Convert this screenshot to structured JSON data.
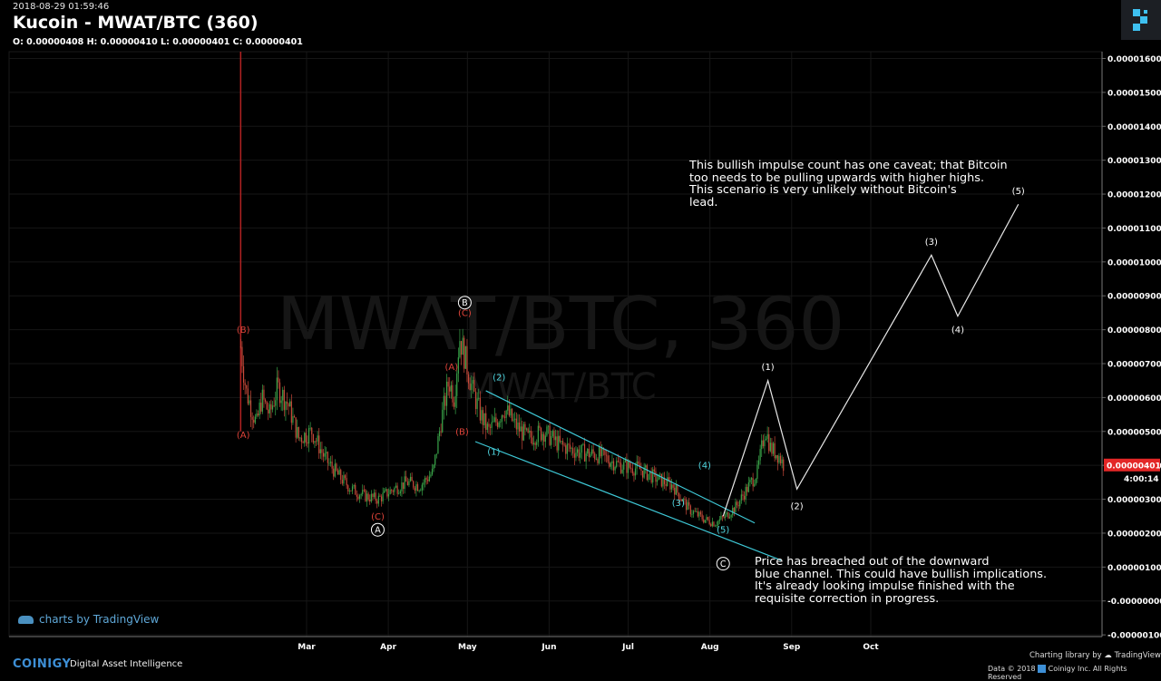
{
  "header": {
    "timestamp": "2018-08-29 01:59:46",
    "title": "Kucoin - MWAT/BTC (360)",
    "ohlc": "O: 0.00000408 H: 0.00000410 L: 0.00000401 C: 0.00000401"
  },
  "watermark": {
    "main": "MWAT/BTC, 360",
    "sub": "MWAT/BTC"
  },
  "chart_data": {
    "type": "candlestick",
    "symbol": "MWAT/BTC",
    "exchange": "Kucoin",
    "interval": "360",
    "x_tick_labels": [
      "Mar",
      "Apr",
      "May",
      "Jun",
      "Jul",
      "Aug",
      "Sep",
      "Oct"
    ],
    "y_tick_labels": [
      "0.00001600",
      "0.00001500",
      "0.00001400",
      "0.00001300",
      "0.00001200",
      "0.00001100",
      "0.00001000",
      "0.00000900",
      "0.00000800",
      "0.00000700",
      "0.00000600",
      "0.00000500",
      "0.00000400",
      "0.00000300",
      "0.00000200",
      "0.00000100",
      "-0.00000000",
      "-0.00000100"
    ],
    "ylim": [
      -1.05e-06,
      1.62e-05
    ],
    "grid": true,
    "last_price": "0.00000401",
    "countdown": "4:00:14",
    "price_path": [
      [
        "2018-02-04",
        7.5e-06
      ],
      [
        "2018-02-06",
        6.2e-06
      ],
      [
        "2018-02-08",
        5.7e-06
      ],
      [
        "2018-02-10",
        5.2e-06
      ],
      [
        "2018-02-12",
        6e-06
      ],
      [
        "2018-02-15",
        5.5e-06
      ],
      [
        "2018-02-18",
        6.3e-06
      ],
      [
        "2018-02-22",
        5.8e-06
      ],
      [
        "2018-02-26",
        4.8e-06
      ],
      [
        "2018-03-03",
        5e-06
      ],
      [
        "2018-03-08",
        4.2e-06
      ],
      [
        "2018-03-13",
        3.7e-06
      ],
      [
        "2018-03-18",
        3.3e-06
      ],
      [
        "2018-03-23",
        3.1e-06
      ],
      [
        "2018-03-28",
        3e-06
      ],
      [
        "2018-04-03",
        3.3e-06
      ],
      [
        "2018-04-08",
        3.5e-06
      ],
      [
        "2018-04-13",
        3.4e-06
      ],
      [
        "2018-04-18",
        3.8e-06
      ],
      [
        "2018-04-21",
        5.3e-06
      ],
      [
        "2018-04-24",
        6.5e-06
      ],
      [
        "2018-04-26",
        6e-06
      ],
      [
        "2018-04-28",
        7.8e-06
      ],
      [
        "2018-04-30",
        7.2e-06
      ],
      [
        "2018-05-03",
        6.2e-06
      ],
      [
        "2018-05-06",
        5.5e-06
      ],
      [
        "2018-05-09",
        5e-06
      ],
      [
        "2018-05-12",
        5.3e-06
      ],
      [
        "2018-05-15",
        5.7e-06
      ],
      [
        "2018-05-19",
        5.2e-06
      ],
      [
        "2018-05-24",
        4.8e-06
      ],
      [
        "2018-05-30",
        5e-06
      ],
      [
        "2018-06-05",
        4.6e-06
      ],
      [
        "2018-06-12",
        4.4e-06
      ],
      [
        "2018-06-20",
        4.3e-06
      ],
      [
        "2018-06-28",
        4e-06
      ],
      [
        "2018-07-05",
        3.9e-06
      ],
      [
        "2018-07-12",
        3.6e-06
      ],
      [
        "2018-07-18",
        3.4e-06
      ],
      [
        "2018-07-24",
        2.7e-06
      ],
      [
        "2018-07-30",
        2.4e-06
      ],
      [
        "2018-08-03",
        2.3e-06
      ],
      [
        "2018-08-07",
        2.5e-06
      ],
      [
        "2018-08-11",
        2.8e-06
      ],
      [
        "2018-08-15",
        3.3e-06
      ],
      [
        "2018-08-19",
        3.8e-06
      ],
      [
        "2018-08-22",
        5.1e-06
      ],
      [
        "2018-08-24",
        4.5e-06
      ],
      [
        "2018-08-27",
        4.3e-06
      ],
      [
        "2018-08-29",
        4.01e-06
      ]
    ],
    "channel_upper": [
      [
        "2018-05-08",
        6.2e-06
      ],
      [
        "2018-08-18",
        2.3e-06
      ]
    ],
    "channel_lower": [
      [
        "2018-05-04",
        4.7e-06
      ],
      [
        "2018-08-28",
        1.2e-06
      ]
    ],
    "projection": [
      [
        "2018-08-06",
        2.5e-06
      ],
      [
        "2018-08-23",
        6.5e-06
      ],
      [
        "2018-09-03",
        3.3e-06
      ],
      [
        "2018-10-24",
        1.02e-05
      ],
      [
        "2018-11-03",
        8.4e-06
      ],
      [
        "2018-11-26",
        1.17e-05
      ]
    ],
    "wave_labels": [
      {
        "text": "(B)",
        "date": "2018-02-05",
        "y": 8e-06,
        "color": "#e0443a"
      },
      {
        "text": "(A)",
        "date": "2018-02-05",
        "y": 4.9e-06,
        "color": "#e0443a"
      },
      {
        "text": "(C)",
        "date": "2018-03-28",
        "y": 2.5e-06,
        "color": "#e0443a"
      },
      {
        "text": "A",
        "date": "2018-03-28",
        "y": 2.1e-06,
        "color": "#ffffff",
        "circled": true
      },
      {
        "text": "B",
        "date": "2018-04-30",
        "y": 8.8e-06,
        "color": "#ffffff",
        "circled": true
      },
      {
        "text": "(C)",
        "date": "2018-04-30",
        "y": 8.5e-06,
        "color": "#e0443a"
      },
      {
        "text": "(A)",
        "date": "2018-04-25",
        "y": 6.9e-06,
        "color": "#e0443a"
      },
      {
        "text": "(B)",
        "date": "2018-04-29",
        "y": 5e-06,
        "color": "#e0443a"
      },
      {
        "text": "(1)",
        "date": "2018-05-11",
        "y": 4.4e-06,
        "color": "#4fd6e0"
      },
      {
        "text": "(2)",
        "date": "2018-05-13",
        "y": 6.6e-06,
        "color": "#4fd6e0"
      },
      {
        "text": "(3)",
        "date": "2018-07-20",
        "y": 2.9e-06,
        "color": "#4fd6e0"
      },
      {
        "text": "(4)",
        "date": "2018-07-30",
        "y": 4e-06,
        "color": "#4fd6e0"
      },
      {
        "text": "(5)",
        "date": "2018-08-06",
        "y": 2.1e-06,
        "color": "#4fd6e0"
      },
      {
        "text": "C",
        "date": "2018-08-06",
        "y": 1.1e-06,
        "color": "#ffffff",
        "circled": true
      },
      {
        "text": "(1)",
        "date": "2018-08-23",
        "y": 6.9e-06,
        "color": "#ffffff"
      },
      {
        "text": "(2)",
        "date": "2018-09-03",
        "y": 2.8e-06,
        "color": "#ffffff"
      },
      {
        "text": "(3)",
        "date": "2018-10-24",
        "y": 1.06e-05,
        "color": "#ffffff"
      },
      {
        "text": "(4)",
        "date": "2018-11-03",
        "y": 8e-06,
        "color": "#ffffff"
      },
      {
        "text": "(5)",
        "date": "2018-11-26",
        "y": 1.21e-05,
        "color": "#ffffff"
      }
    ],
    "annotations": [
      "This bullish impulse count has one caveat; that Bitcoin\ntoo needs to be pulling upwards with higher highs.\nThis scenario is very unlikely without Bitcoin's\nlead.",
      "Price has breached out of the downward\nblue channel. This could have bullish implications.\nIt's already looking impulse finished with the\nrequisite correction in progress."
    ],
    "colors": {
      "up": "#3aa64a",
      "down": "#c94a3a",
      "channel": "#3ec8d6",
      "last_price_bg": "#e32727",
      "spike": "#b22222"
    }
  },
  "footer": {
    "tv_brand": "charts by TradingView",
    "coinigy": "COINIGY",
    "coinigy_sub": "Digital Asset Intelligence",
    "charting_lib": "Charting library by",
    "tradingview": "TradingView",
    "data_line": "Data © 2018",
    "coinigy_inc": "Coinigy Inc. All Rights Reserved"
  }
}
